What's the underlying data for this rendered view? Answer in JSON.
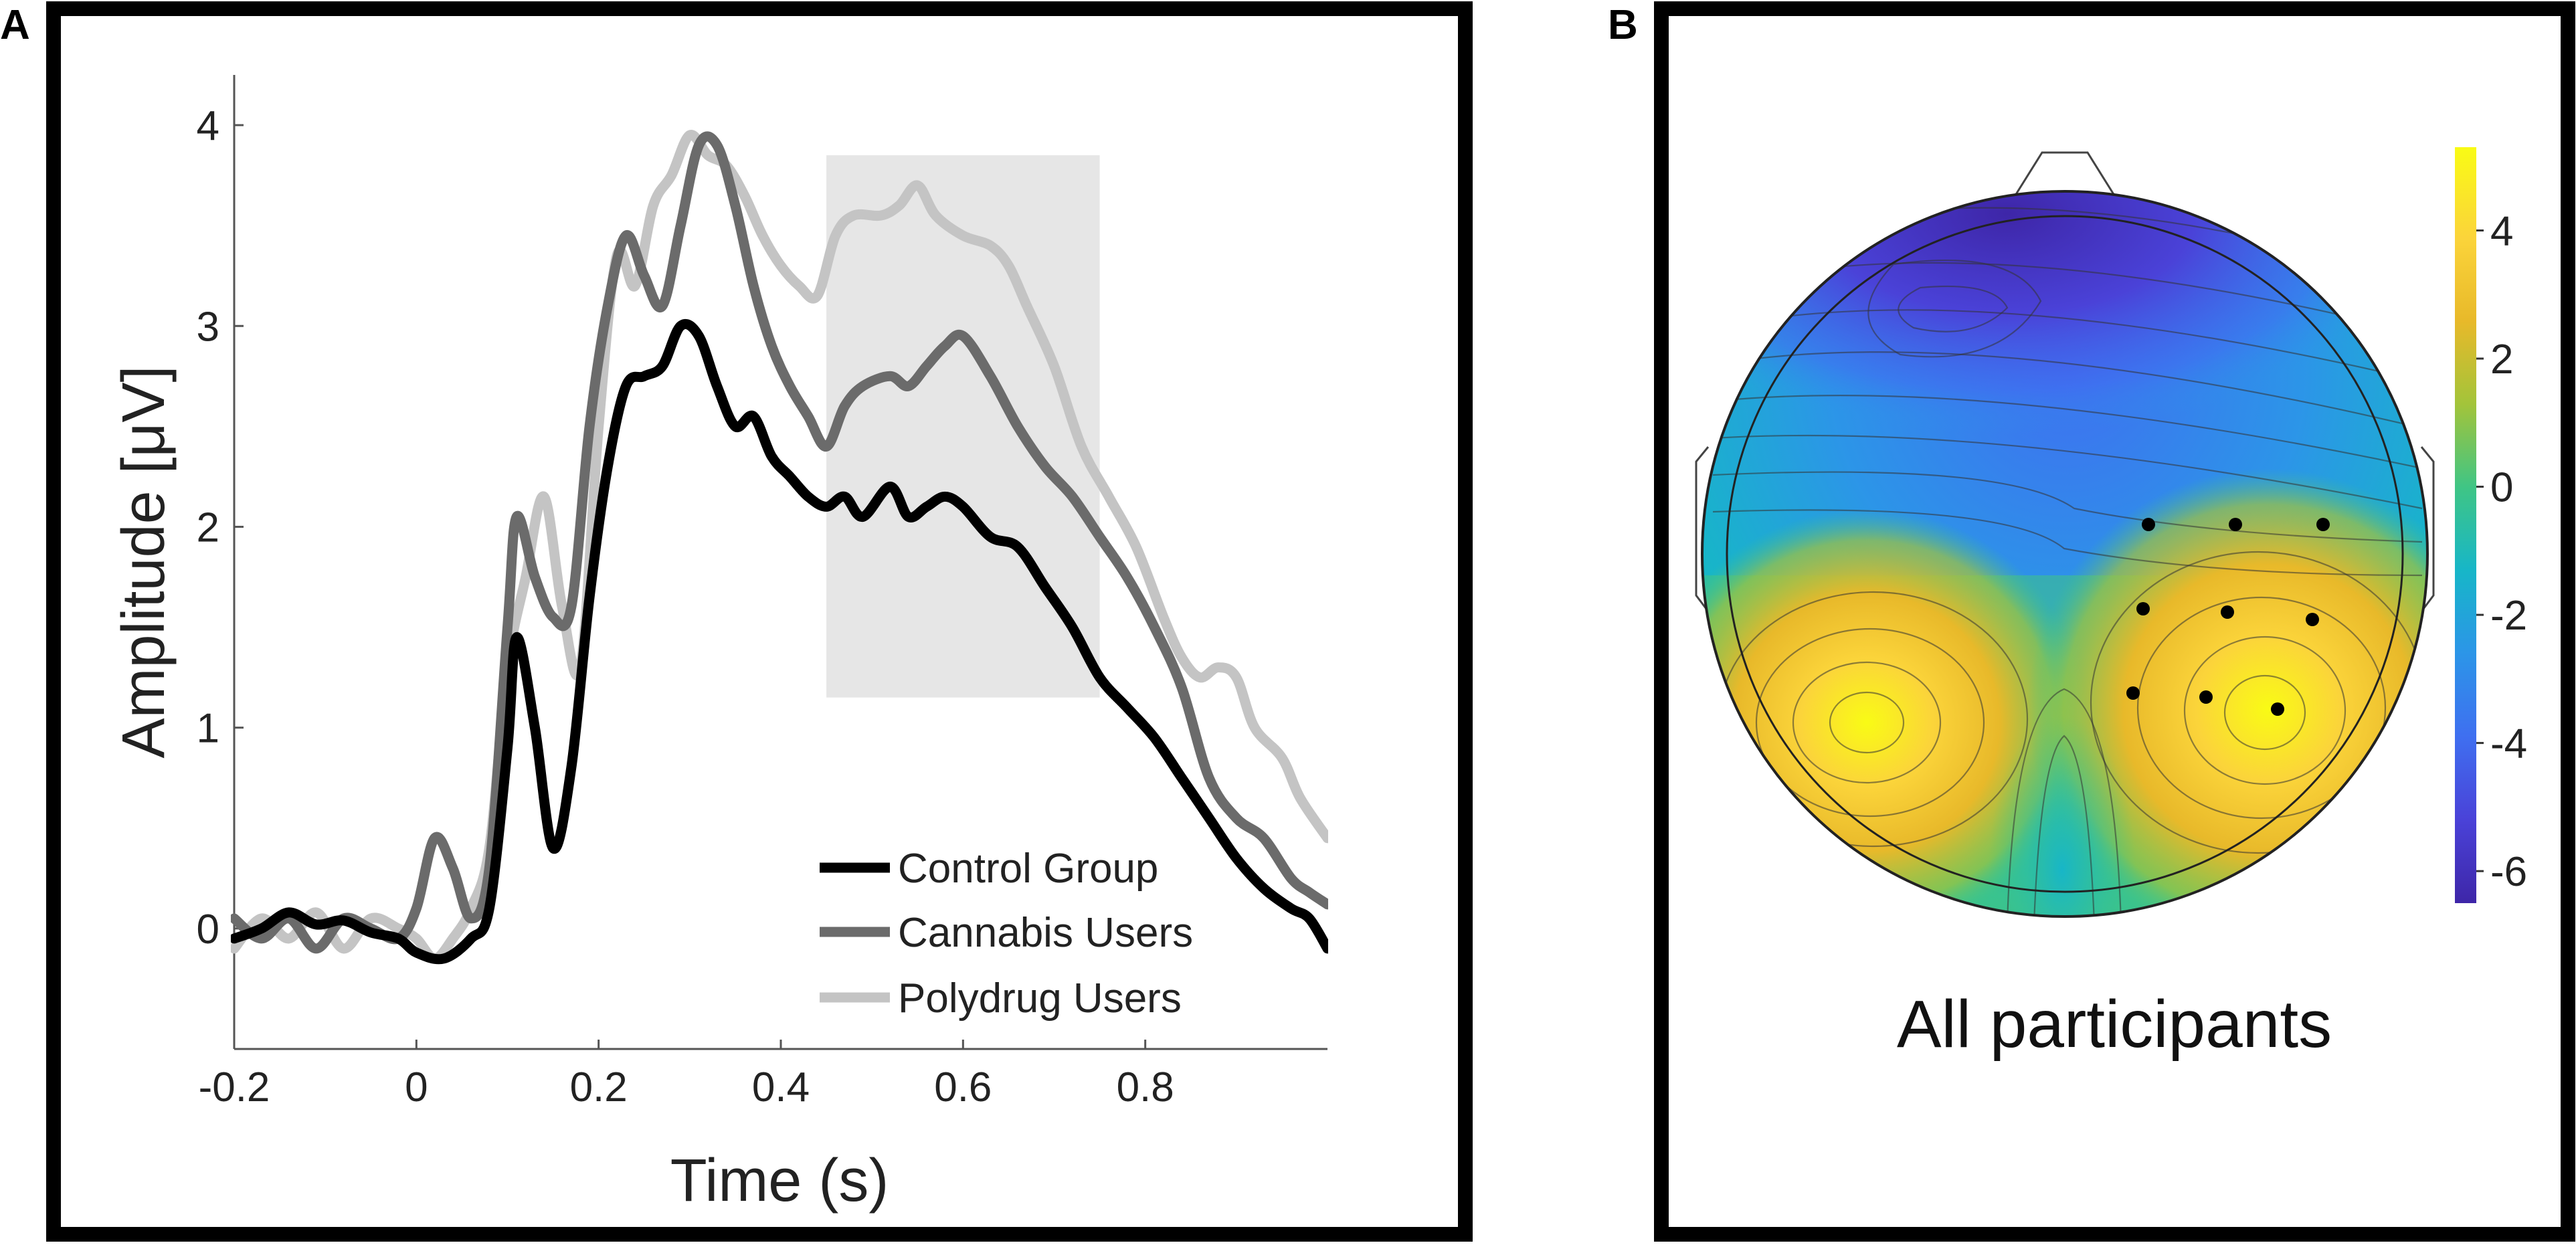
{
  "figure": {
    "panel_a_label": "A",
    "panel_b_label": "B"
  },
  "chart_data": [
    {
      "type": "line",
      "title": "",
      "xlabel": "Time (s)",
      "ylabel": "Amplitude [μV]",
      "xlim": [
        -0.2,
        1.0
      ],
      "ylim": [
        -0.6,
        4.25
      ],
      "x_ticks": [
        -0.2,
        0,
        0.2,
        0.4,
        0.6,
        0.8
      ],
      "x_tick_labels": [
        "-0.2",
        "0",
        "0.2",
        "0.4",
        "0.6",
        "0.8"
      ],
      "y_ticks": [
        0,
        1,
        2,
        3,
        4
      ],
      "y_tick_labels": [
        "0",
        "1",
        "2",
        "3",
        "4"
      ],
      "shaded_window": {
        "x": [
          0.45,
          0.75
        ],
        "y": [
          1.15,
          3.85
        ],
        "color": "#e6e6e6"
      },
      "legend_position": "bottom-right",
      "series": [
        {
          "name": "Control Group",
          "color": "#000000",
          "points": [
            [
              -0.2,
              -0.05
            ],
            [
              -0.17,
              0.0
            ],
            [
              -0.14,
              0.08
            ],
            [
              -0.11,
              0.02
            ],
            [
              -0.08,
              0.04
            ],
            [
              -0.05,
              -0.02
            ],
            [
              -0.02,
              -0.05
            ],
            [
              0.0,
              -0.12
            ],
            [
              0.03,
              -0.15
            ],
            [
              0.06,
              -0.05
            ],
            [
              0.08,
              0.1
            ],
            [
              0.1,
              0.9
            ],
            [
              0.11,
              1.45
            ],
            [
              0.13,
              1.0
            ],
            [
              0.15,
              0.4
            ],
            [
              0.17,
              0.8
            ],
            [
              0.19,
              1.65
            ],
            [
              0.21,
              2.3
            ],
            [
              0.23,
              2.7
            ],
            [
              0.25,
              2.75
            ],
            [
              0.27,
              2.8
            ],
            [
              0.29,
              3.0
            ],
            [
              0.31,
              2.95
            ],
            [
              0.33,
              2.7
            ],
            [
              0.35,
              2.5
            ],
            [
              0.37,
              2.55
            ],
            [
              0.39,
              2.35
            ],
            [
              0.41,
              2.25
            ],
            [
              0.43,
              2.15
            ],
            [
              0.45,
              2.1
            ],
            [
              0.47,
              2.15
            ],
            [
              0.49,
              2.05
            ],
            [
              0.52,
              2.2
            ],
            [
              0.54,
              2.05
            ],
            [
              0.56,
              2.1
            ],
            [
              0.58,
              2.15
            ],
            [
              0.6,
              2.1
            ],
            [
              0.63,
              1.95
            ],
            [
              0.66,
              1.9
            ],
            [
              0.69,
              1.7
            ],
            [
              0.72,
              1.5
            ],
            [
              0.75,
              1.25
            ],
            [
              0.78,
              1.1
            ],
            [
              0.81,
              0.95
            ],
            [
              0.84,
              0.75
            ],
            [
              0.87,
              0.55
            ],
            [
              0.9,
              0.35
            ],
            [
              0.93,
              0.2
            ],
            [
              0.96,
              0.1
            ],
            [
              0.98,
              0.05
            ],
            [
              1.0,
              -0.1
            ]
          ]
        },
        {
          "name": "Cannabis Users",
          "color": "#6b6b6b",
          "points": [
            [
              -0.2,
              0.05
            ],
            [
              -0.17,
              -0.05
            ],
            [
              -0.14,
              0.05
            ],
            [
              -0.11,
              -0.1
            ],
            [
              -0.08,
              0.05
            ],
            [
              -0.05,
              0.0
            ],
            [
              -0.02,
              -0.05
            ],
            [
              0.0,
              0.1
            ],
            [
              0.02,
              0.45
            ],
            [
              0.04,
              0.3
            ],
            [
              0.06,
              0.05
            ],
            [
              0.08,
              0.3
            ],
            [
              0.1,
              1.5
            ],
            [
              0.11,
              2.05
            ],
            [
              0.13,
              1.75
            ],
            [
              0.15,
              1.55
            ],
            [
              0.17,
              1.6
            ],
            [
              0.19,
              2.5
            ],
            [
              0.21,
              3.1
            ],
            [
              0.23,
              3.45
            ],
            [
              0.25,
              3.25
            ],
            [
              0.27,
              3.1
            ],
            [
              0.29,
              3.5
            ],
            [
              0.31,
              3.9
            ],
            [
              0.33,
              3.9
            ],
            [
              0.35,
              3.6
            ],
            [
              0.37,
              3.2
            ],
            [
              0.39,
              2.9
            ],
            [
              0.41,
              2.7
            ],
            [
              0.43,
              2.55
            ],
            [
              0.45,
              2.4
            ],
            [
              0.47,
              2.6
            ],
            [
              0.49,
              2.7
            ],
            [
              0.52,
              2.75
            ],
            [
              0.54,
              2.7
            ],
            [
              0.56,
              2.8
            ],
            [
              0.58,
              2.9
            ],
            [
              0.6,
              2.95
            ],
            [
              0.63,
              2.75
            ],
            [
              0.66,
              2.5
            ],
            [
              0.69,
              2.3
            ],
            [
              0.72,
              2.15
            ],
            [
              0.75,
              1.95
            ],
            [
              0.78,
              1.75
            ],
            [
              0.81,
              1.5
            ],
            [
              0.84,
              1.2
            ],
            [
              0.87,
              0.75
            ],
            [
              0.9,
              0.55
            ],
            [
              0.93,
              0.45
            ],
            [
              0.96,
              0.25
            ],
            [
              0.98,
              0.18
            ],
            [
              1.0,
              0.12
            ]
          ]
        },
        {
          "name": "Polydrug Users",
          "color": "#c4c4c4",
          "points": [
            [
              -0.2,
              -0.1
            ],
            [
              -0.17,
              0.05
            ],
            [
              -0.14,
              -0.05
            ],
            [
              -0.11,
              0.08
            ],
            [
              -0.08,
              -0.1
            ],
            [
              -0.05,
              0.05
            ],
            [
              -0.02,
              0.0
            ],
            [
              0.0,
              -0.05
            ],
            [
              0.02,
              -0.15
            ],
            [
              0.04,
              -0.05
            ],
            [
              0.06,
              0.1
            ],
            [
              0.08,
              0.4
            ],
            [
              0.1,
              1.3
            ],
            [
              0.12,
              1.75
            ],
            [
              0.14,
              2.15
            ],
            [
              0.16,
              1.6
            ],
            [
              0.18,
              1.3
            ],
            [
              0.2,
              2.5
            ],
            [
              0.22,
              3.35
            ],
            [
              0.24,
              3.2
            ],
            [
              0.26,
              3.6
            ],
            [
              0.28,
              3.75
            ],
            [
              0.3,
              3.95
            ],
            [
              0.32,
              3.85
            ],
            [
              0.34,
              3.8
            ],
            [
              0.36,
              3.65
            ],
            [
              0.38,
              3.45
            ],
            [
              0.4,
              3.3
            ],
            [
              0.42,
              3.2
            ],
            [
              0.44,
              3.15
            ],
            [
              0.46,
              3.45
            ],
            [
              0.48,
              3.55
            ],
            [
              0.51,
              3.55
            ],
            [
              0.53,
              3.6
            ],
            [
              0.55,
              3.7
            ],
            [
              0.57,
              3.55
            ],
            [
              0.6,
              3.45
            ],
            [
              0.63,
              3.4
            ],
            [
              0.65,
              3.3
            ],
            [
              0.67,
              3.1
            ],
            [
              0.7,
              2.8
            ],
            [
              0.73,
              2.4
            ],
            [
              0.76,
              2.15
            ],
            [
              0.79,
              1.9
            ],
            [
              0.82,
              1.55
            ],
            [
              0.84,
              1.35
            ],
            [
              0.86,
              1.25
            ],
            [
              0.88,
              1.3
            ],
            [
              0.9,
              1.25
            ],
            [
              0.92,
              1.0
            ],
            [
              0.95,
              0.85
            ],
            [
              0.97,
              0.65
            ],
            [
              1.0,
              0.45
            ]
          ]
        }
      ]
    },
    {
      "type": "heatmap",
      "subtype": "scalp-topography",
      "title": "All participants",
      "colorbar": {
        "range": [
          -6.5,
          5.3
        ],
        "ticks": [
          4,
          2,
          0,
          -2,
          -4,
          -6
        ],
        "tick_labels": [
          "4",
          "2",
          "0",
          "-2",
          "-4",
          "-6"
        ],
        "colormap": [
          "#3e26a8",
          "#4a42d8",
          "#3f6ff0",
          "#2c95e8",
          "#17b6c8",
          "#3fc585",
          "#a3c43a",
          "#e8b92a",
          "#fbd43a",
          "#f9fb15"
        ]
      },
      "highlighted_electrodes": 9
    }
  ]
}
